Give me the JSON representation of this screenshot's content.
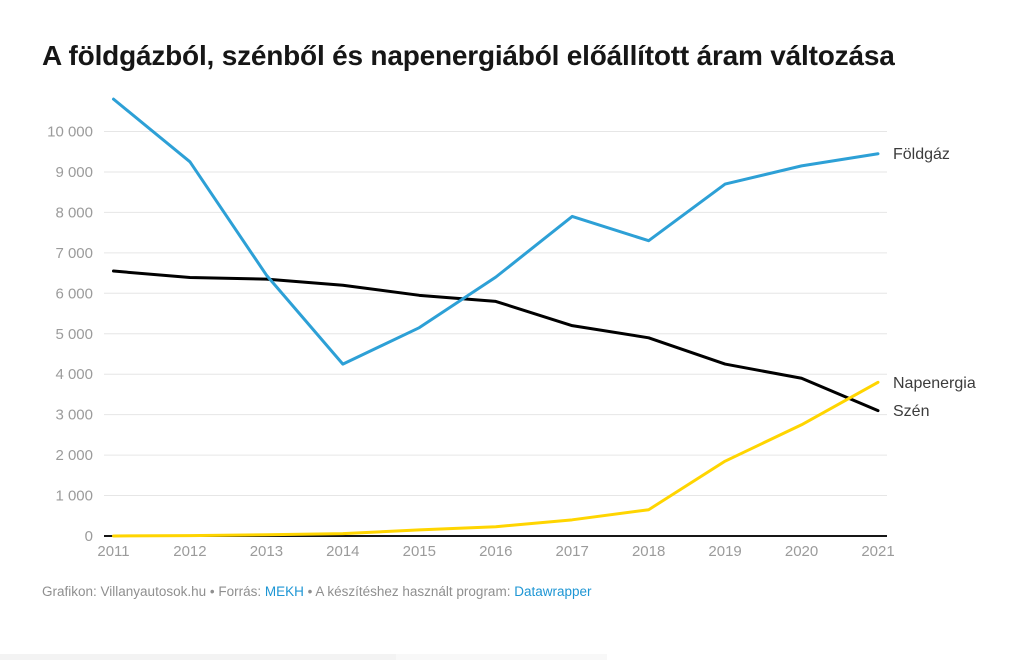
{
  "title": "A földgázból, szénből és napenergiából előállított áram változása",
  "chart_data": {
    "type": "line",
    "x": [
      "2011",
      "2012",
      "2013",
      "2014",
      "2015",
      "2016",
      "2017",
      "2018",
      "2019",
      "2020",
      "2021"
    ],
    "series": [
      {
        "name": "Földgáz",
        "color": "#2da0d6",
        "values": [
          10800,
          9250,
          6450,
          4250,
          5150,
          6400,
          7900,
          7300,
          8700,
          9150,
          9450
        ]
      },
      {
        "name": "Szén",
        "color": "#000000",
        "values": [
          6550,
          6390,
          6350,
          6200,
          5950,
          5800,
          5200,
          4900,
          4250,
          3900,
          3100
        ]
      },
      {
        "name": "Napenergia",
        "color": "#ffd500",
        "values": [
          0,
          10,
          30,
          60,
          150,
          230,
          400,
          650,
          1850,
          2750,
          3800
        ]
      }
    ],
    "ylim": [
      0,
      10000
    ],
    "y_tick_labels": [
      "0",
      "1 000",
      "2 000",
      "3 000",
      "4 000",
      "5 000",
      "6 000",
      "7 000",
      "8 000",
      "9 000",
      "10 000"
    ],
    "grid": "horizontal-only",
    "legend_position": "right-end-labels",
    "draw_order": [
      "Szén",
      "Földgáz",
      "Napenergia"
    ]
  },
  "footer": {
    "segments": [
      {
        "text": "Grafikon: Villanyautosok.hu • Forrás: ",
        "link": false
      },
      {
        "text": "MEKH",
        "link": true
      },
      {
        "text": " • A készítéshez használt program: ",
        "link": false
      },
      {
        "text": "Datawrapper",
        "link": true
      }
    ]
  },
  "colors": {
    "foldgaz_line": "#2da0d6",
    "szen_line": "#000000",
    "napenergia_line": "#ffd500",
    "link_blue": "#1e96d4",
    "tick_text": "#9b9b9b",
    "gridline": "#e6e6e6"
  }
}
